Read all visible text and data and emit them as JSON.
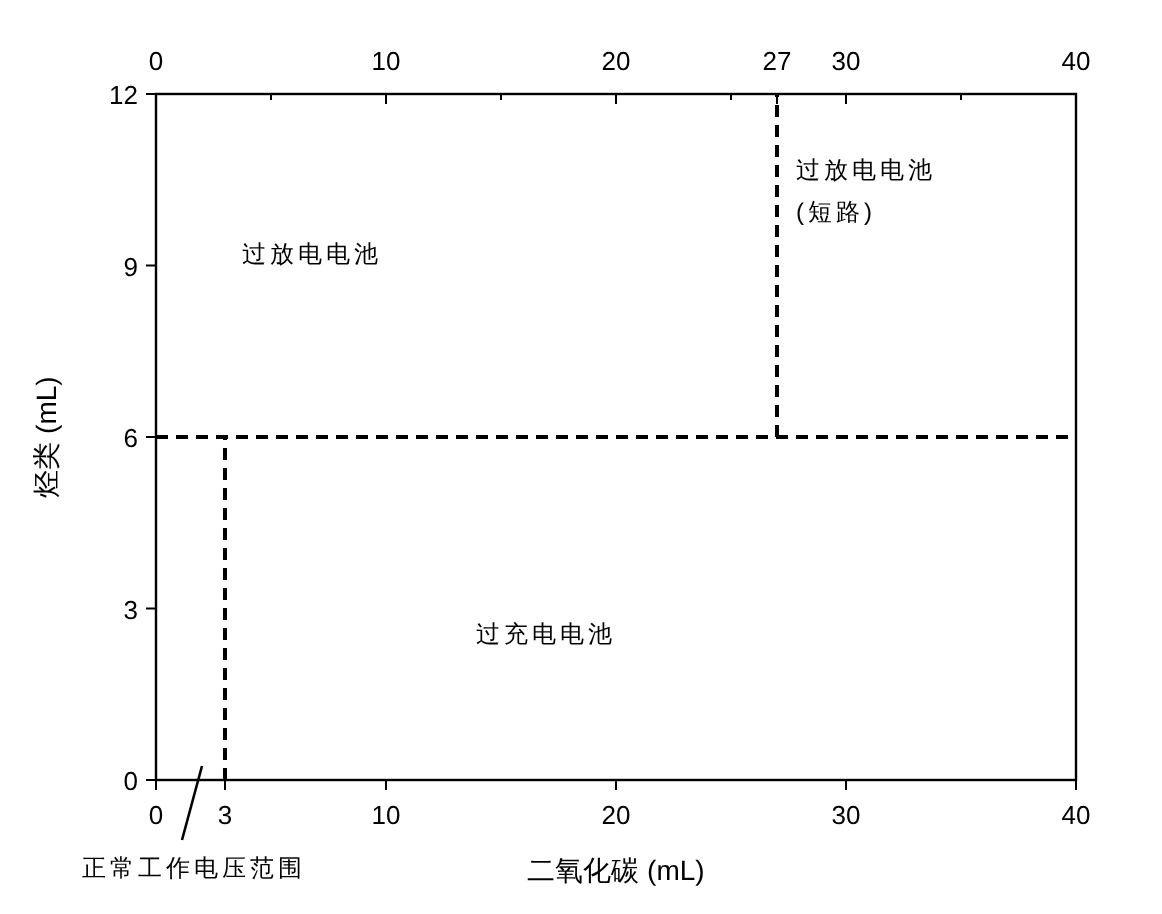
{
  "chart_data": {
    "type": "line",
    "xlabel": "二氧化碳 (mL)",
    "ylabel": "烃类 (mL)",
    "xlim": [
      0,
      40
    ],
    "xticks": [
      0,
      3,
      10,
      20,
      30,
      40
    ],
    "x2lim": [
      0,
      40
    ],
    "x2ticks": [
      0,
      {
        "value": 5,
        "label": null
      },
      10,
      {
        "value": 15,
        "label": null
      },
      20,
      {
        "value": 25,
        "label": null
      },
      27,
      30,
      {
        "value": 35,
        "label": null
      },
      40
    ],
    "ylim": [
      0,
      12
    ],
    "yticks": [
      0,
      3,
      6,
      9,
      12
    ],
    "line_style": "dashed",
    "marker": "none",
    "grid": false,
    "series": [
      {
        "color": "#000000",
        "x": [
          0,
          40
        ],
        "values": [
          6,
          6
        ]
      },
      {
        "color": "#000000",
        "x": [
          3,
          3
        ],
        "values": [
          0,
          6
        ]
      },
      {
        "color": "#000000",
        "x": [
          27,
          27
        ],
        "values": [
          6,
          12
        ]
      }
    ],
    "annotations": [
      "过放电电池",
      "过放电电池\n(短路)",
      "过充电电池",
      "正常工作电压范围"
    ]
  }
}
